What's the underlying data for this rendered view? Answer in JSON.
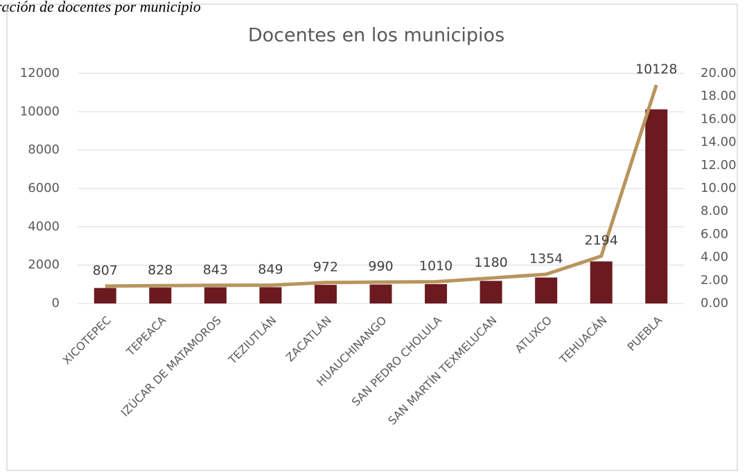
{
  "caption": "ración de docentes por municipio",
  "chart_data": {
    "type": "bar-line",
    "title": "Docentes en los municipios",
    "categories": [
      "XICOTEPEC",
      "TEPEACA",
      "IZÚCAR DE MATAMOROS",
      "TEZIUTLÁN",
      "ZACATLÁN",
      "HUAUCHINANGO",
      "SAN PEDRO CHOLULA",
      "SAN MARTÍN TEXMELUCAN",
      "ATLIXCO",
      "TEHUACÁN",
      "PUEBLA"
    ],
    "series": [
      {
        "type": "bar",
        "color": "#6b1a1f",
        "values": [
          807,
          828,
          843,
          849,
          972,
          990,
          1010,
          1180,
          1354,
          2194,
          10128
        ]
      },
      {
        "type": "line",
        "axis": "y2",
        "color": "#b8955e",
        "values": [
          1.51,
          1.55,
          1.58,
          1.59,
          1.82,
          1.86,
          1.89,
          2.21,
          2.54,
          4.12,
          19.0
        ]
      }
    ],
    "ylim": [
      0,
      12000
    ],
    "yticks": [
      0,
      2000,
      4000,
      6000,
      8000,
      10000,
      12000
    ],
    "y2lim": [
      0,
      20
    ],
    "y2ticks": [
      {
        "value": 0,
        "label": "0.00"
      },
      {
        "value": 2,
        "label": "2.00"
      },
      {
        "value": 4,
        "label": "4.00"
      },
      {
        "value": 6,
        "label": "6.00"
      },
      {
        "value": 8,
        "label": "8.00"
      },
      {
        "value": 10,
        "label": "10.00"
      },
      {
        "value": 12,
        "label": "12.00"
      },
      {
        "value": 14,
        "label": "14.00"
      },
      {
        "value": 16,
        "label": "16.00"
      },
      {
        "value": 18,
        "label": "18.00"
      },
      {
        "value": 20,
        "label": "20.00"
      }
    ],
    "grid": true
  }
}
